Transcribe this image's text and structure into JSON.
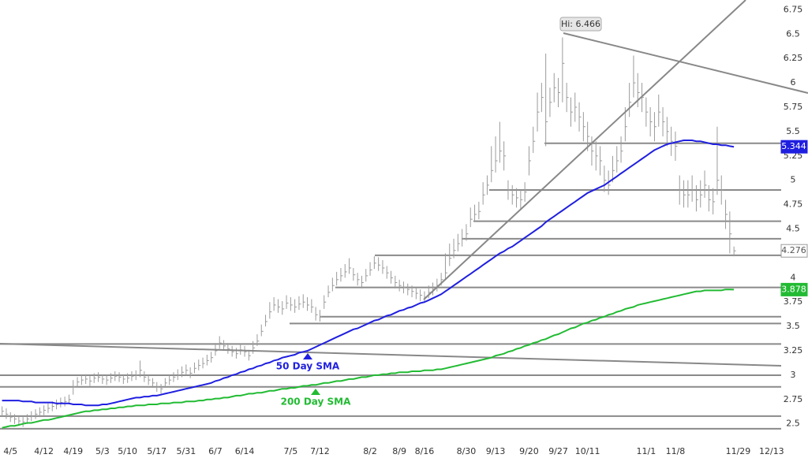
{
  "chart_data": {
    "type": "ohlc",
    "categories": [
      null,
      null,
      "4/5",
      null,
      null,
      null,
      null,
      null,
      null,
      null,
      "4/12",
      null,
      null,
      null,
      null,
      null,
      null,
      "4/19",
      null,
      null,
      null,
      null,
      null,
      null,
      "5/3",
      null,
      null,
      null,
      null,
      null,
      "5/10",
      null,
      null,
      null,
      null,
      null,
      null,
      "5/17",
      null,
      null,
      null,
      null,
      null,
      null,
      "5/31",
      null,
      null,
      null,
      null,
      null,
      null,
      "6/7",
      null,
      null,
      null,
      null,
      null,
      null,
      "6/14",
      null,
      null,
      null,
      null,
      null,
      null,
      null,
      null,
      null,
      null,
      "7/5",
      null,
      null,
      null,
      null,
      null,
      null,
      "7/12",
      null,
      null,
      null,
      null,
      null,
      null,
      null,
      null,
      null,
      null,
      null,
      "8/2",
      null,
      null,
      null,
      null,
      null,
      null,
      "8/9",
      null,
      null,
      null,
      null,
      null,
      "8/16",
      null,
      null,
      null,
      null,
      null,
      null,
      null,
      null,
      null,
      "8/30",
      null,
      null,
      null,
      null,
      null,
      null,
      "9/13",
      null,
      null,
      null,
      null,
      null,
      null,
      null,
      "9/20",
      null,
      null,
      null,
      null,
      null,
      null,
      "9/27",
      null,
      null,
      null,
      null,
      null,
      null,
      "10/11",
      null,
      null,
      null,
      null,
      null,
      null,
      null,
      null,
      null,
      null,
      null,
      null,
      null,
      "11/1",
      null,
      null,
      null,
      null,
      null,
      null,
      "11/8",
      null,
      null,
      null,
      null,
      null,
      null,
      null,
      null,
      null,
      null,
      null,
      null,
      null,
      null,
      "11/29",
      null,
      null,
      null,
      null,
      null,
      null,
      null,
      "12/13",
      null
    ],
    "high": [
      2.68,
      2.66,
      2.62,
      2.6,
      2.58,
      2.57,
      2.6,
      2.63,
      2.65,
      2.67,
      2.69,
      2.71,
      2.73,
      2.75,
      2.77,
      2.78,
      2.8,
      2.95,
      2.98,
      3.0,
      3.01,
      2.99,
      3.02,
      3.03,
      3.01,
      3.0,
      3.02,
      3.04,
      3.03,
      3.01,
      3.02,
      3.04,
      3.05,
      3.15,
      3.04,
      3.0,
      2.97,
      2.93,
      2.91,
      2.97,
      3.0,
      3.03,
      3.06,
      3.09,
      3.11,
      3.08,
      3.13,
      3.16,
      3.18,
      3.21,
      3.24,
      3.33,
      3.4,
      3.36,
      3.33,
      3.3,
      3.28,
      3.32,
      3.3,
      3.26,
      3.35,
      3.42,
      3.52,
      3.62,
      3.75,
      3.8,
      3.78,
      3.76,
      3.82,
      3.8,
      3.78,
      3.81,
      3.83,
      3.8,
      3.78,
      3.7,
      3.67,
      3.82,
      3.92,
      4.0,
      4.06,
      4.1,
      4.14,
      4.2,
      4.1,
      4.05,
      4.02,
      4.09,
      4.16,
      4.22,
      4.21,
      4.18,
      4.12,
      4.07,
      4.02,
      3.98,
      3.96,
      3.94,
      3.92,
      3.9,
      3.88,
      3.86,
      3.92,
      3.95,
      3.99,
      4.05,
      4.25,
      4.35,
      4.4,
      4.45,
      4.5,
      4.55,
      4.72,
      4.75,
      4.78,
      4.98,
      5.05,
      5.35,
      5.45,
      5.6,
      5.4,
      5.0,
      4.95,
      4.92,
      4.9,
      4.98,
      5.35,
      5.55,
      5.9,
      6.0,
      6.3,
      5.95,
      6.1,
      6.05,
      6.466,
      6.0,
      5.85,
      5.9,
      5.8,
      5.7,
      5.6,
      5.45,
      5.4,
      5.35,
      5.15,
      5.1,
      5.25,
      5.35,
      5.45,
      5.75,
      6.0,
      6.28,
      6.1,
      6.0,
      5.85,
      5.75,
      5.7,
      5.88,
      5.75,
      5.65,
      5.55,
      5.5,
      5.05,
      5.0,
      5.0,
      5.05,
      4.95,
      5.0,
      5.1,
      4.95,
      4.92,
      5.55,
      5.05,
      4.8,
      4.68,
      4.32,
      null,
      null,
      null,
      null,
      null,
      null,
      null,
      null,
      null,
      null
    ],
    "low": [
      2.58,
      2.55,
      2.52,
      2.5,
      2.48,
      2.47,
      2.5,
      2.53,
      2.55,
      2.57,
      2.59,
      2.61,
      2.63,
      2.65,
      2.67,
      2.68,
      2.7,
      2.8,
      2.88,
      2.9,
      2.91,
      2.89,
      2.92,
      2.93,
      2.91,
      2.9,
      2.92,
      2.94,
      2.93,
      2.91,
      2.92,
      2.94,
      2.95,
      2.98,
      2.93,
      2.9,
      2.87,
      2.83,
      2.81,
      2.87,
      2.9,
      2.93,
      2.95,
      2.98,
      3.0,
      2.97,
      3.02,
      3.05,
      3.07,
      3.1,
      3.13,
      3.2,
      3.27,
      3.25,
      3.22,
      3.19,
      3.17,
      3.21,
      3.19,
      3.15,
      3.22,
      3.3,
      3.4,
      3.5,
      3.58,
      3.66,
      3.64,
      3.62,
      3.68,
      3.66,
      3.64,
      3.67,
      3.69,
      3.66,
      3.64,
      3.56,
      3.55,
      3.68,
      3.8,
      3.86,
      3.92,
      3.96,
      4.0,
      4.04,
      3.97,
      3.92,
      3.89,
      3.96,
      4.02,
      4.09,
      4.07,
      4.04,
      3.99,
      3.94,
      3.89,
      3.86,
      3.84,
      3.82,
      3.8,
      3.78,
      3.76,
      3.74,
      3.79,
      3.82,
      3.86,
      3.92,
      3.98,
      4.12,
      4.2,
      4.27,
      4.32,
      4.38,
      4.52,
      4.58,
      4.6,
      4.75,
      4.85,
      4.98,
      5.08,
      5.18,
      5.1,
      4.8,
      4.75,
      4.72,
      4.7,
      4.78,
      5.05,
      5.28,
      5.5,
      5.7,
      5.35,
      5.65,
      5.8,
      5.75,
      5.8,
      5.7,
      5.55,
      5.6,
      5.5,
      5.4,
      5.3,
      5.15,
      5.1,
      5.05,
      4.88,
      4.85,
      4.98,
      5.08,
      5.18,
      5.4,
      5.65,
      5.85,
      5.75,
      5.7,
      5.55,
      5.45,
      5.4,
      5.55,
      5.45,
      5.35,
      5.25,
      5.2,
      4.75,
      4.72,
      4.72,
      4.78,
      4.68,
      4.72,
      4.82,
      4.68,
      4.65,
      4.85,
      4.75,
      4.5,
      4.25,
      4.22,
      null,
      null,
      null,
      null,
      null,
      null,
      null,
      null,
      null,
      null
    ],
    "close": [
      2.63,
      2.6,
      2.57,
      2.55,
      2.53,
      2.52,
      2.55,
      2.58,
      2.6,
      2.62,
      2.64,
      2.66,
      2.68,
      2.7,
      2.72,
      2.73,
      2.75,
      2.88,
      2.93,
      2.95,
      2.96,
      2.94,
      2.97,
      2.98,
      2.96,
      2.95,
      2.97,
      2.99,
      2.98,
      2.96,
      2.97,
      2.99,
      3.0,
      3.05,
      2.98,
      2.95,
      2.92,
      2.88,
      2.86,
      2.92,
      2.95,
      2.98,
      3.0,
      3.03,
      3.05,
      3.02,
      3.07,
      3.1,
      3.12,
      3.15,
      3.18,
      3.25,
      3.33,
      3.3,
      3.27,
      3.24,
      3.22,
      3.26,
      3.24,
      3.2,
      3.28,
      3.35,
      3.45,
      3.55,
      3.65,
      3.72,
      3.7,
      3.68,
      3.74,
      3.72,
      3.7,
      3.73,
      3.75,
      3.72,
      3.7,
      3.62,
      3.6,
      3.75,
      3.85,
      3.92,
      3.98,
      4.02,
      4.06,
      4.1,
      4.03,
      3.98,
      3.95,
      4.02,
      4.08,
      4.15,
      4.13,
      4.1,
      4.05,
      4.0,
      3.95,
      3.92,
      3.9,
      3.88,
      3.86,
      3.84,
      3.82,
      3.8,
      3.85,
      3.88,
      3.92,
      3.98,
      4.05,
      4.2,
      4.28,
      4.35,
      4.4,
      4.45,
      4.6,
      4.65,
      4.68,
      4.85,
      4.95,
      5.1,
      5.2,
      5.3,
      5.25,
      4.9,
      4.85,
      4.82,
      4.8,
      4.88,
      5.2,
      5.4,
      5.7,
      5.85,
      5.6,
      5.8,
      5.95,
      5.9,
      6.2,
      5.85,
      5.7,
      5.75,
      5.65,
      5.55,
      5.45,
      5.3,
      5.25,
      5.2,
      5.0,
      4.95,
      5.1,
      5.2,
      5.3,
      5.55,
      5.8,
      6.0,
      5.9,
      5.85,
      5.7,
      5.6,
      5.55,
      5.7,
      5.6,
      5.5,
      5.4,
      5.35,
      4.9,
      4.85,
      4.85,
      4.9,
      4.8,
      4.85,
      4.95,
      4.8,
      4.78,
      5.0,
      4.9,
      4.65,
      4.45,
      4.276,
      null,
      null,
      null,
      null,
      null,
      null,
      null,
      null,
      null,
      null
    ],
    "color": "#9a9a9a",
    "overlays": [
      {
        "name": "50 Day SMA",
        "color": "#1f1fe0",
        "values": [
          2.74,
          2.74,
          2.74,
          2.74,
          2.74,
          2.73,
          2.73,
          2.73,
          2.72,
          2.72,
          2.72,
          2.72,
          2.72,
          2.71,
          2.71,
          2.71,
          2.71,
          2.7,
          2.7,
          2.7,
          2.69,
          2.69,
          2.69,
          2.69,
          2.7,
          2.7,
          2.71,
          2.72,
          2.73,
          2.74,
          2.75,
          2.76,
          2.77,
          2.77,
          2.78,
          2.78,
          2.79,
          2.79,
          2.8,
          2.81,
          2.82,
          2.83,
          2.84,
          2.85,
          2.86,
          2.87,
          2.88,
          2.89,
          2.9,
          2.91,
          2.92,
          2.94,
          2.95,
          2.97,
          2.98,
          3.0,
          3.01,
          3.03,
          3.04,
          3.06,
          3.07,
          3.09,
          3.1,
          3.12,
          3.13,
          3.15,
          3.16,
          3.18,
          3.19,
          3.2,
          3.21,
          3.23,
          3.24,
          3.25,
          3.27,
          3.29,
          3.31,
          3.33,
          3.35,
          3.37,
          3.39,
          3.41,
          3.43,
          3.45,
          3.47,
          3.48,
          3.5,
          3.52,
          3.54,
          3.56,
          3.57,
          3.59,
          3.61,
          3.62,
          3.64,
          3.66,
          3.67,
          3.69,
          3.7,
          3.72,
          3.74,
          3.75,
          3.77,
          3.79,
          3.81,
          3.83,
          3.86,
          3.89,
          3.92,
          3.95,
          3.98,
          4.01,
          4.04,
          4.07,
          4.1,
          4.13,
          4.16,
          4.19,
          4.22,
          4.25,
          4.27,
          4.3,
          4.32,
          4.35,
          4.38,
          4.41,
          4.44,
          4.47,
          4.5,
          4.53,
          4.57,
          4.6,
          4.63,
          4.66,
          4.69,
          4.72,
          4.75,
          4.78,
          4.81,
          4.84,
          4.87,
          4.89,
          4.91,
          4.93,
          4.95,
          4.98,
          5.01,
          5.04,
          5.07,
          5.1,
          5.13,
          5.16,
          5.19,
          5.22,
          5.25,
          5.28,
          5.31,
          5.33,
          5.35,
          5.37,
          5.38,
          5.39,
          5.4,
          5.41,
          5.41,
          5.41,
          5.4,
          5.4,
          5.39,
          5.38,
          5.37,
          5.37,
          5.36,
          5.36,
          5.35,
          5.344,
          null,
          null,
          null,
          null,
          null,
          null,
          null,
          null,
          null,
          null
        ]
      },
      {
        "name": "200 Day SMA",
        "color": "#22bb33",
        "values": [
          2.46,
          2.47,
          2.48,
          2.48,
          2.49,
          2.5,
          2.51,
          2.51,
          2.52,
          2.53,
          2.54,
          2.54,
          2.55,
          2.56,
          2.57,
          2.58,
          2.59,
          2.6,
          2.61,
          2.62,
          2.63,
          2.63,
          2.64,
          2.64,
          2.65,
          2.65,
          2.66,
          2.66,
          2.67,
          2.67,
          2.68,
          2.68,
          2.69,
          2.69,
          2.69,
          2.7,
          2.7,
          2.7,
          2.71,
          2.71,
          2.71,
          2.72,
          2.72,
          2.72,
          2.73,
          2.73,
          2.73,
          2.74,
          2.74,
          2.75,
          2.75,
          2.76,
          2.76,
          2.77,
          2.77,
          2.78,
          2.79,
          2.79,
          2.8,
          2.81,
          2.81,
          2.82,
          2.82,
          2.83,
          2.84,
          2.84,
          2.85,
          2.86,
          2.86,
          2.87,
          2.87,
          2.88,
          2.89,
          2.89,
          2.9,
          2.9,
          2.91,
          2.92,
          2.92,
          2.93,
          2.94,
          2.94,
          2.95,
          2.96,
          2.96,
          2.97,
          2.98,
          2.98,
          2.99,
          3.0,
          3.0,
          3.01,
          3.01,
          3.02,
          3.02,
          3.03,
          3.03,
          3.03,
          3.04,
          3.04,
          3.04,
          3.05,
          3.05,
          3.05,
          3.06,
          3.06,
          3.07,
          3.08,
          3.09,
          3.1,
          3.11,
          3.12,
          3.13,
          3.14,
          3.15,
          3.16,
          3.17,
          3.18,
          3.2,
          3.21,
          3.22,
          3.24,
          3.25,
          3.27,
          3.28,
          3.3,
          3.31,
          3.33,
          3.34,
          3.36,
          3.37,
          3.39,
          3.41,
          3.42,
          3.44,
          3.46,
          3.48,
          3.49,
          3.51,
          3.53,
          3.54,
          3.56,
          3.57,
          3.59,
          3.6,
          3.62,
          3.63,
          3.65,
          3.66,
          3.68,
          3.69,
          3.7,
          3.72,
          3.73,
          3.74,
          3.75,
          3.76,
          3.77,
          3.78,
          3.79,
          3.8,
          3.81,
          3.82,
          3.83,
          3.84,
          3.85,
          3.86,
          3.86,
          3.87,
          3.87,
          3.87,
          3.87,
          3.87,
          3.88,
          3.88,
          3.878,
          null,
          null,
          null,
          null,
          null,
          null,
          null,
          null,
          null,
          null
        ]
      }
    ],
    "levels": [
      5.38,
      4.9,
      4.58,
      4.4,
      4.23,
      3.9,
      3.6,
      3.53,
      3.32,
      3.0,
      2.88,
      2.58,
      2.45
    ],
    "hi_label": "Hi: 6.466",
    "ylim": [
      2.32,
      6.85
    ],
    "yticks": [
      2.5,
      2.75,
      3,
      3.25,
      3.5,
      3.75,
      4,
      4.25,
      4.5,
      4.75,
      5,
      5.25,
      5.5,
      5.75,
      6,
      6.25,
      6.5,
      6.75
    ]
  }
}
